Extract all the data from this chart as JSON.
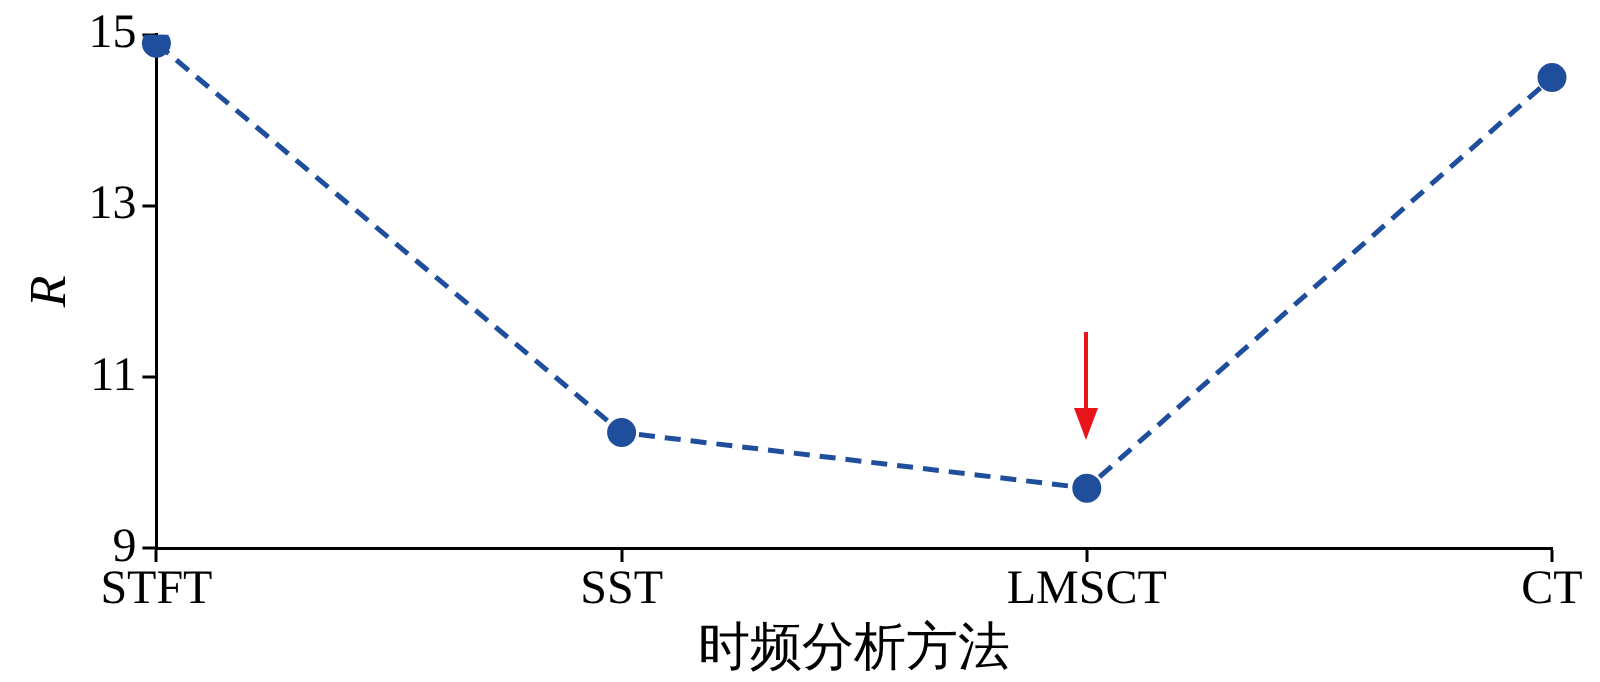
{
  "chart_data": {
    "type": "line",
    "xlabel": "时频分析方法",
    "ylabel": "R",
    "categories": [
      "STFT",
      "SST",
      "LMSCT",
      "CT"
    ],
    "series": [
      {
        "color": "#1f4e9c",
        "values": [
          14.9,
          10.35,
          9.7,
          14.5
        ]
      }
    ],
    "ylim": [
      9,
      15
    ],
    "yticks": [
      9,
      11,
      13,
      15
    ],
    "grid": false,
    "legend": false,
    "marker": "circle",
    "line_style": "dashed"
  }
}
